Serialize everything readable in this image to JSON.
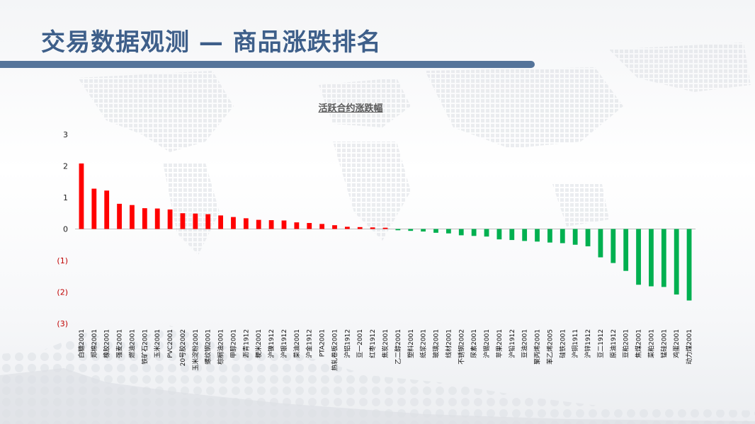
{
  "page": {
    "title": "交易数据观测 — 商品涨跌排名"
  },
  "colors": {
    "up": "#ff0000",
    "down": "#00b050",
    "title": "#3e5f8a",
    "bar": "#55749a"
  },
  "chart_data": {
    "type": "bar",
    "title": "活跃合约涨跌幅",
    "ylim": [
      -3,
      3
    ],
    "yticks": [
      {
        "value": 3,
        "label": "3"
      },
      {
        "value": 2,
        "label": "2"
      },
      {
        "value": 1,
        "label": "1"
      },
      {
        "value": 0,
        "label": "0"
      },
      {
        "value": -1,
        "label": "(1)"
      },
      {
        "value": -2,
        "label": "(2)"
      },
      {
        "value": -3,
        "label": "(3)"
      }
    ],
    "grid": false,
    "categories": [
      "白糖2001",
      "郑棉2001",
      "橡胶2001",
      "强麦2001",
      "燃油2001",
      "铁矿石2001",
      "玉米2001",
      "PVC2001",
      "20号胶2002",
      "玉米淀粉2001",
      "螺纹钢2001",
      "棕榈油2001",
      "甲醇2001",
      "沥青1912",
      "粳米2001",
      "沪镍1912",
      "沪银1912",
      "菜油2001",
      "沪金1912",
      "PTA2001",
      "热轧卷板2001",
      "沪铝1912",
      "豆一2001",
      "红枣1912",
      "焦炭2001",
      "乙二醇2001",
      "塑料2001",
      "纸浆2001",
      "玻璃2001",
      "线材2001",
      "不锈钢2002",
      "尿素2001",
      "沪锡2001",
      "苹果2001",
      "沪铅1912",
      "豆油2001",
      "聚丙烯2001",
      "苯乙烯2005",
      "硅铁2001",
      "沪铜1911",
      "沪锌1912",
      "豆二1912",
      "原油1912",
      "豆粕2001",
      "焦煤2001",
      "菜粕2001",
      "锰硅2001",
      "鸡蛋2001",
      "动力煤2001"
    ],
    "values": [
      2.08,
      1.28,
      1.22,
      0.8,
      0.76,
      0.66,
      0.65,
      0.62,
      0.5,
      0.49,
      0.47,
      0.43,
      0.38,
      0.34,
      0.29,
      0.28,
      0.27,
      0.21,
      0.19,
      0.16,
      0.12,
      0.07,
      0.06,
      0.05,
      0.04,
      -0.04,
      -0.06,
      -0.08,
      -0.12,
      -0.14,
      -0.2,
      -0.22,
      -0.24,
      -0.33,
      -0.35,
      -0.38,
      -0.4,
      -0.43,
      -0.45,
      -0.5,
      -0.55,
      -0.9,
      -1.08,
      -1.33,
      -1.77,
      -1.82,
      -1.84,
      -2.08,
      -2.27
    ]
  }
}
